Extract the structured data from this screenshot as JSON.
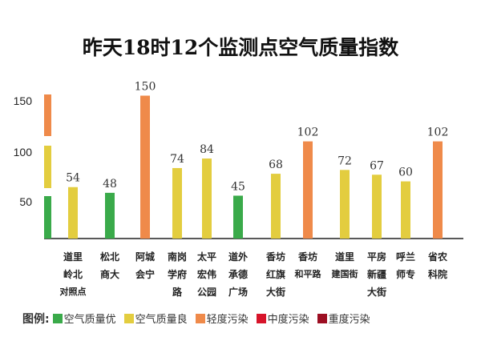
{
  "chart_data": {
    "type": "bar",
    "title": "昨天18时12个监测点空气质量指数",
    "categories": [
      [
        "道里",
        "岭北",
        "对照点"
      ],
      [
        "松北",
        "商大"
      ],
      [
        "阿城",
        "会宁"
      ],
      [
        "南岗",
        "学府",
        "路"
      ],
      [
        "太平",
        "宏伟",
        "公园"
      ],
      [
        "道外",
        "承德",
        "广场"
      ],
      [
        "香坊",
        "红旗",
        "大街"
      ],
      [
        "香坊",
        "和平路"
      ],
      [
        "道里",
        "建国街"
      ],
      [
        "平房",
        "新疆",
        "大街"
      ],
      [
        "呼兰",
        "师专"
      ],
      [
        "省农",
        "科院"
      ]
    ],
    "values": [
      54,
      48,
      150,
      74,
      84,
      45,
      68,
      102,
      72,
      67,
      60,
      102
    ],
    "levels": [
      "good",
      "excellent",
      "light",
      "good",
      "good",
      "excellent",
      "good",
      "light",
      "good",
      "good",
      "good",
      "light"
    ],
    "yticks": [
      50,
      100,
      150
    ],
    "ylim": [
      0,
      150
    ],
    "legend_title": "图例:",
    "legend": [
      {
        "key": "excellent",
        "label": "空气质量优",
        "color": "#3aaa4a"
      },
      {
        "key": "good",
        "label": "空气质量良",
        "color": "#e3cd3f"
      },
      {
        "key": "light",
        "label": "轻度污染",
        "color": "#ef8a4a"
      },
      {
        "key": "medium",
        "label": "中度污染",
        "color": "#d7142a"
      },
      {
        "key": "heavy",
        "label": "重度污染",
        "color": "#9c0e22"
      }
    ]
  }
}
